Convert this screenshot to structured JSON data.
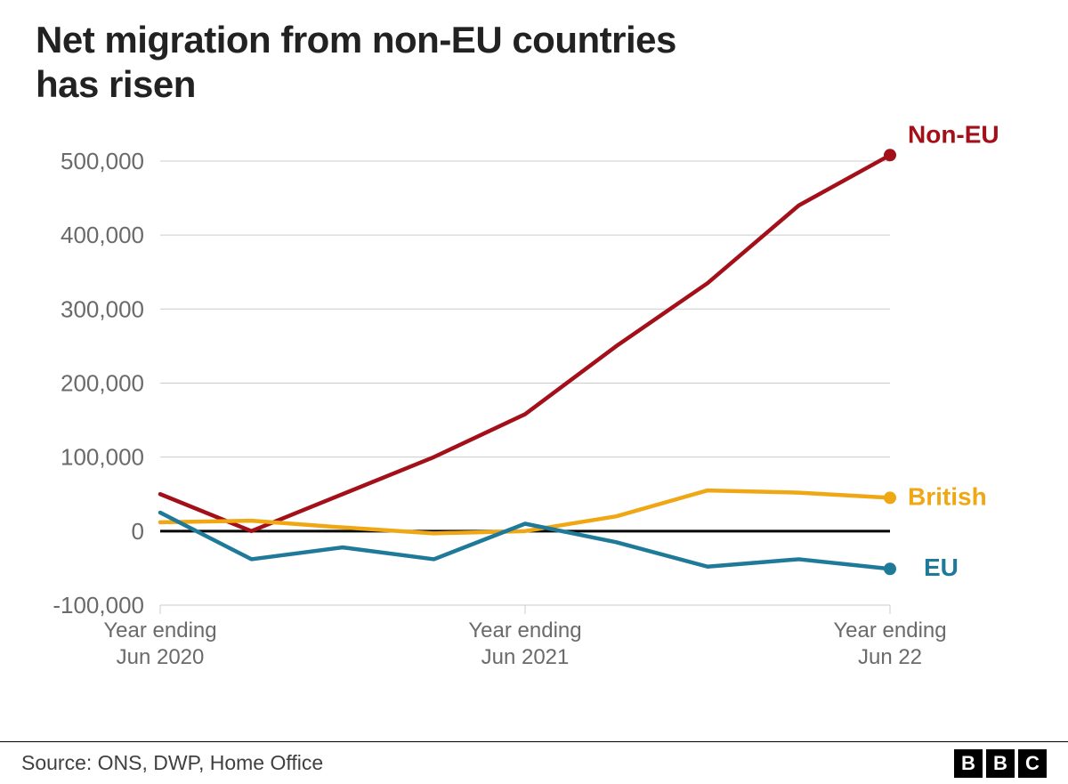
{
  "title_line1": "Net migration from non-EU countries",
  "title_line2": "has risen",
  "source": "Source: ONS, DWP, Home Office",
  "logo_letters": [
    "B",
    "B",
    "C"
  ],
  "chart": {
    "type": "line",
    "background_color": "#ffffff",
    "grid_color": "#cccccc",
    "zero_line_color": "#000000",
    "axis_label_color": "#6a6a6a",
    "title_color": "#222222",
    "title_fontsize": 42,
    "ylabel_fontsize": 26,
    "xlabel_fontsize": 24,
    "series_label_fontsize": 28,
    "line_width": 4.5,
    "end_marker_size": 7,
    "ylim": [
      -100000,
      530000
    ],
    "yticks": [
      -100000,
      0,
      100000,
      200000,
      300000,
      400000,
      500000
    ],
    "ytick_labels": [
      "-100,000",
      "0",
      "100,000",
      "200,000",
      "300,000",
      "400,000",
      "500,000"
    ],
    "x_count": 9,
    "xticks": [
      0,
      4,
      8
    ],
    "xtick_labels": [
      [
        "Year ending",
        "Jun 2020"
      ],
      [
        "Year ending",
        "Jun 2021"
      ],
      [
        "Year ending",
        "Jun 22"
      ]
    ],
    "series": [
      {
        "name": "Non-EU",
        "color": "#a3101a",
        "values": [
          50000,
          0,
          50000,
          100000,
          158000,
          250000,
          335000,
          440000,
          508000
        ],
        "label_dx": 20,
        "label_dy": -14
      },
      {
        "name": "British",
        "color": "#f0a714",
        "values": [
          12000,
          14000,
          5000,
          -3000,
          0,
          20000,
          55000,
          52000,
          45000
        ],
        "label_dx": 20,
        "label_dy": 8
      },
      {
        "name": "EU",
        "color": "#1f7a99",
        "values": [
          25000,
          -38000,
          -22000,
          -38000,
          10000,
          -15000,
          -48000,
          -38000,
          -51000
        ],
        "label_dx": 38,
        "label_dy": 8
      }
    ]
  }
}
